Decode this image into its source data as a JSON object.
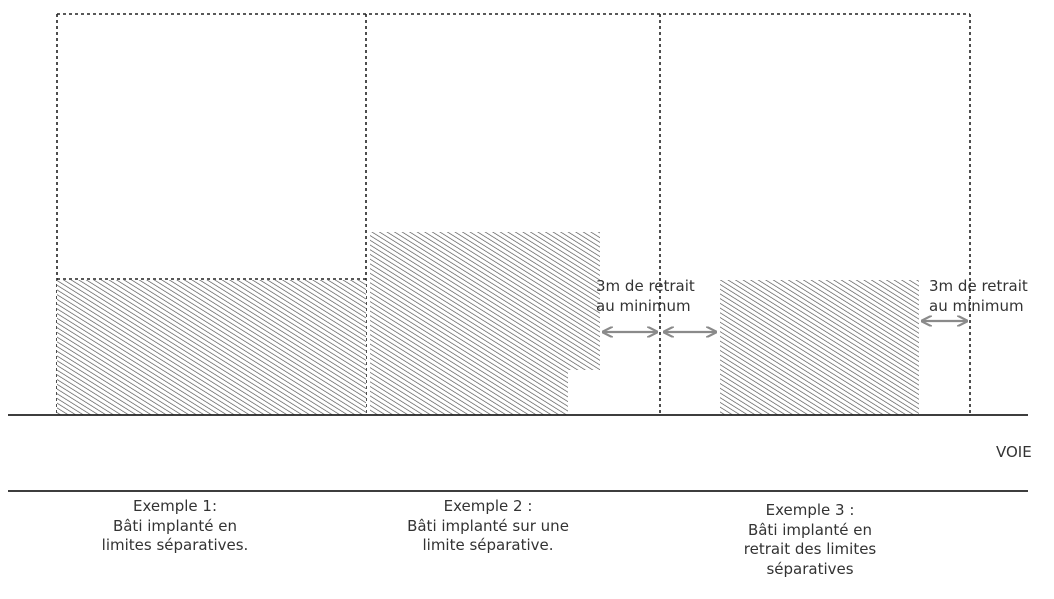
{
  "diagram": {
    "road_label": "VOIE",
    "setback_label_line1": "3m de retrait",
    "setback_label_line2": "au minimum",
    "examples": [
      {
        "title": "Exemple 1:",
        "description_lines": [
          "Bâti implanté en",
          "limites séparatives."
        ]
      },
      {
        "title": "Exemple 2 :",
        "description_lines": [
          "Bâti implanté sur une",
          "limite séparative."
        ]
      },
      {
        "title": "Exemple 3 :",
        "description_lines": [
          "Bâti implanté en",
          "retrait des limites",
          "séparatives"
        ]
      }
    ],
    "colors": {
      "line": "#222222",
      "hatch": "#555555",
      "arrow": "#8a8a8a"
    }
  }
}
